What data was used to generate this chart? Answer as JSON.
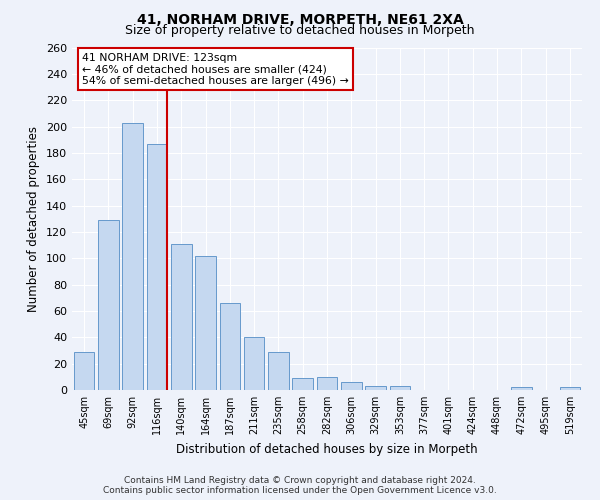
{
  "title": "41, NORHAM DRIVE, MORPETH, NE61 2XA",
  "subtitle": "Size of property relative to detached houses in Morpeth",
  "xlabel": "Distribution of detached houses by size in Morpeth",
  "ylabel": "Number of detached properties",
  "footer_line1": "Contains HM Land Registry data © Crown copyright and database right 2024.",
  "footer_line2": "Contains public sector information licensed under the Open Government Licence v3.0.",
  "categories": [
    "45sqm",
    "69sqm",
    "92sqm",
    "116sqm",
    "140sqm",
    "164sqm",
    "187sqm",
    "211sqm",
    "235sqm",
    "258sqm",
    "282sqm",
    "306sqm",
    "329sqm",
    "353sqm",
    "377sqm",
    "401sqm",
    "424sqm",
    "448sqm",
    "472sqm",
    "495sqm",
    "519sqm"
  ],
  "bar_values": [
    29,
    129,
    203,
    187,
    111,
    102,
    66,
    40,
    29,
    9,
    10,
    6,
    3,
    3,
    0,
    0,
    0,
    0,
    2,
    0,
    2
  ],
  "bar_color": "#c5d8f0",
  "bar_edge_color": "#6699cc",
  "red_line_label1": "41 NORHAM DRIVE: 123sqm",
  "red_line_label2": "← 46% of detached houses are smaller (424)",
  "red_line_label3": "54% of semi-detached houses are larger (496) →",
  "ylim": [
    0,
    260
  ],
  "yticks": [
    0,
    20,
    40,
    60,
    80,
    100,
    120,
    140,
    160,
    180,
    200,
    220,
    240,
    260
  ],
  "background_color": "#eef2fa",
  "grid_color": "#ffffff",
  "annotation_box_color": "#ffffff",
  "annotation_box_edge_color": "#cc0000",
  "red_line_color": "#cc0000"
}
